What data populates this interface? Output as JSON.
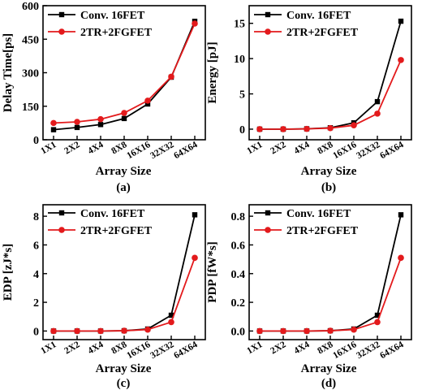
{
  "chart_data": [
    {
      "type": "line",
      "panel_label": "(a)",
      "xlabel": "Array Size",
      "ylabel": "Delay Time[ps]",
      "categories": [
        "1X1",
        "2X2",
        "4X4",
        "8X8",
        "16X16",
        "32X32",
        "64X64"
      ],
      "ylim": [
        0,
        600
      ],
      "yticks": [
        0,
        150,
        300,
        450,
        600
      ],
      "ytick_labels": [
        "0",
        "150",
        "300",
        "450",
        "600"
      ],
      "legend_position": "top-left",
      "grid": false,
      "series": [
        {
          "name": "Conv. 16FET",
          "color": "#000000",
          "marker": "square",
          "values": [
            45,
            55,
            68,
            95,
            160,
            280,
            530
          ]
        },
        {
          "name": "2TR+2FGFET",
          "color": "#e31a1c",
          "marker": "circle",
          "values": [
            75,
            80,
            92,
            120,
            175,
            282,
            520
          ]
        }
      ]
    },
    {
      "type": "line",
      "panel_label": "(b)",
      "xlabel": "Array Size",
      "ylabel": "Energy [pJ]",
      "categories": [
        "1X1",
        "2X2",
        "4X4",
        "8X8",
        "16X16",
        "32X32",
        "64X64"
      ],
      "ylim": [
        -1.5,
        17.5
      ],
      "yticks": [
        0,
        5,
        10,
        15
      ],
      "ytick_labels": [
        "0",
        "5",
        "10",
        "15"
      ],
      "legend_position": "top-left",
      "grid": false,
      "series": [
        {
          "name": "Conv. 16FET",
          "color": "#000000",
          "marker": "square",
          "values": [
            0,
            0,
            0.05,
            0.2,
            0.9,
            3.9,
            15.3
          ]
        },
        {
          "name": "2TR+2FGFET",
          "color": "#e31a1c",
          "marker": "circle",
          "values": [
            0,
            0,
            0.04,
            0.15,
            0.55,
            2.2,
            9.8
          ]
        }
      ]
    },
    {
      "type": "line",
      "panel_label": "(c)",
      "xlabel": "Array Size",
      "ylabel": "EDP [zJ*s]",
      "categories": [
        "1X1",
        "2X2",
        "4X4",
        "8X8",
        "16X16",
        "32X32",
        "64X64"
      ],
      "ylim": [
        -0.6,
        8.8
      ],
      "yticks": [
        0,
        2,
        4,
        6,
        8
      ],
      "ytick_labels": [
        "0",
        "2",
        "4",
        "6",
        "8"
      ],
      "legend_position": "top-left",
      "grid": false,
      "series": [
        {
          "name": "Conv. 16FET",
          "color": "#000000",
          "marker": "square",
          "values": [
            0,
            0,
            0,
            0.02,
            0.14,
            1.1,
            8.1
          ]
        },
        {
          "name": "2TR+2FGFET",
          "color": "#e31a1c",
          "marker": "circle",
          "values": [
            0,
            0,
            0,
            0.02,
            0.1,
            0.62,
            5.1
          ]
        }
      ]
    },
    {
      "type": "line",
      "panel_label": "(d)",
      "xlabel": "Array Size",
      "ylabel": "PDP [fW*s]",
      "categories": [
        "1X1",
        "2X2",
        "4X4",
        "8X8",
        "16X16",
        "32X32",
        "64X64"
      ],
      "ylim": [
        -0.06,
        0.88
      ],
      "yticks": [
        0.0,
        0.2,
        0.4,
        0.6,
        0.8
      ],
      "ytick_labels": [
        "0.0",
        "0.2",
        "0.4",
        "0.6",
        "0.8"
      ],
      "legend_position": "top-left",
      "grid": false,
      "series": [
        {
          "name": "Conv. 16FET",
          "color": "#000000",
          "marker": "square",
          "values": [
            0,
            0,
            0,
            0.002,
            0.014,
            0.11,
            0.81
          ]
        },
        {
          "name": "2TR+2FGFET",
          "color": "#e31a1c",
          "marker": "circle",
          "values": [
            0,
            0,
            0,
            0.002,
            0.01,
            0.062,
            0.51
          ]
        }
      ]
    }
  ]
}
